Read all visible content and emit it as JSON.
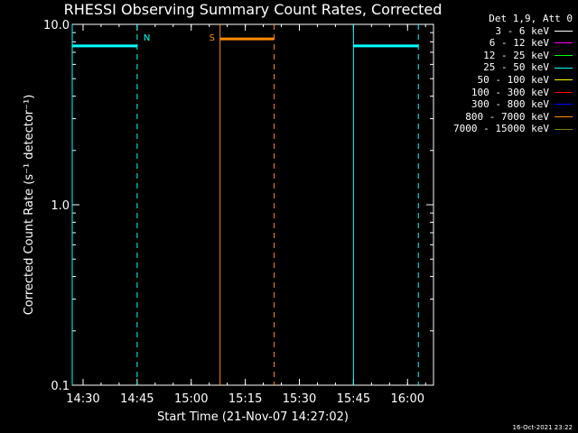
{
  "chart_data": {
    "type": "line",
    "title": "RHESSI Observing Summary Count Rates, Corrected",
    "xlabel": "Start Time (21-Nov-07 14:27:02)",
    "ylabel": "Corrected Count Rate (s⁻¹ detector⁻¹)",
    "yscale": "log",
    "ylim": [
      0.1,
      10.0
    ],
    "y_tick_labels": [
      "0.1",
      "1.0",
      "10.0"
    ],
    "x_range_minutes": [
      14.45,
      16.12
    ],
    "x_ticks": [
      "14:30",
      "14:45",
      "15:00",
      "15:15",
      "15:30",
      "15:45",
      "16:00"
    ],
    "series": [
      {
        "name": "25 - 50 keV",
        "color": "#00ffff",
        "segments": [
          {
            "x": [
              "14:27",
              "14:45"
            ],
            "y": 7.6
          },
          {
            "x": [
              "15:45",
              "16:03"
            ],
            "y": 7.6
          }
        ]
      },
      {
        "name": "800 - 7000 keV",
        "color": "#ff8c00",
        "segments": [
          {
            "x": [
              "15:08",
              "15:23"
            ],
            "y": 8.3
          }
        ]
      }
    ],
    "markers": [
      {
        "label": "N",
        "time": "14:45",
        "color": "#00ffff",
        "style": "dashed"
      },
      {
        "label": "",
        "time": "14:27",
        "color": "#00ffff",
        "style": "solid"
      },
      {
        "label": "",
        "time": "15:45",
        "color": "#00ffff",
        "style": "solid"
      },
      {
        "label": "",
        "time": "16:03",
        "color": "#00ffff",
        "style": "dashed"
      },
      {
        "label": "S",
        "time": "15:08",
        "color": "#ff8c00",
        "style": "solid"
      },
      {
        "label": "",
        "time": "15:23",
        "color": "#ff8c00",
        "style": "dashed"
      }
    ],
    "legend_position": "right",
    "legend_header": "Det 1,9, Att 0",
    "legend": [
      {
        "label": "3 - 6 keV",
        "color": "#ffffff"
      },
      {
        "label": "6 - 12 keV",
        "color": "#ff00ff"
      },
      {
        "label": "12 - 25 keV",
        "color": "#00ff00"
      },
      {
        "label": "25 - 50 keV",
        "color": "#00ffff"
      },
      {
        "label": "50 - 100 keV",
        "color": "#ffff00"
      },
      {
        "label": "100 - 300 keV",
        "color": "#ff0000"
      },
      {
        "label": "300 - 800 keV",
        "color": "#0000ff"
      },
      {
        "label": "800 - 7000 keV",
        "color": "#ff8c00"
      },
      {
        "label": "7000 - 15000 keV",
        "color": "#808000"
      }
    ]
  },
  "footer": {
    "timestamp": "16-Oct-2021 23:22"
  }
}
